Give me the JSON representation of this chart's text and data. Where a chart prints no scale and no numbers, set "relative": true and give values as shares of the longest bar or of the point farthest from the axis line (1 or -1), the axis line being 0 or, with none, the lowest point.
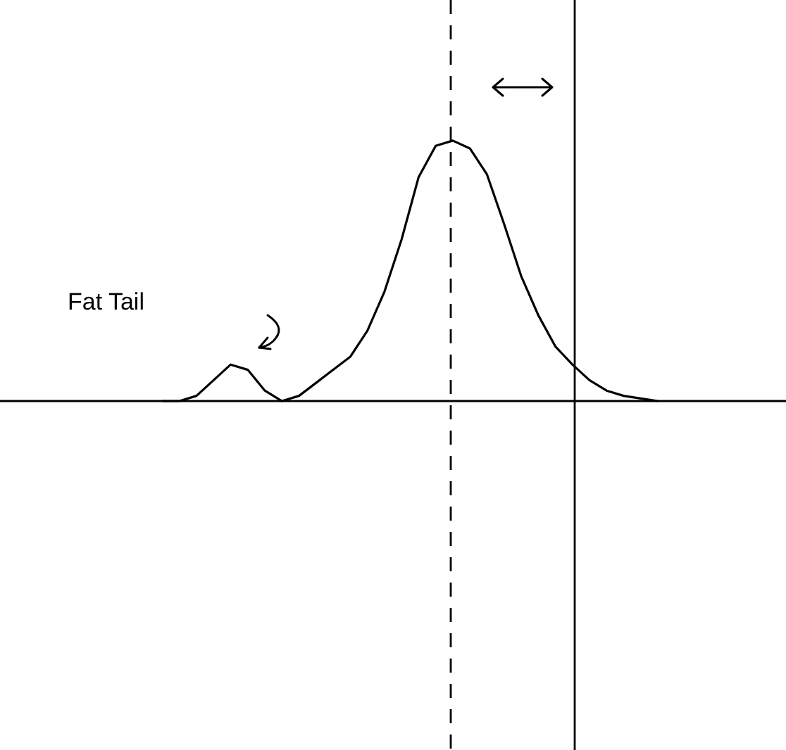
{
  "chart_data": {
    "type": "line",
    "relative": true,
    "categories": [
      null,
      null,
      null,
      null,
      null,
      null,
      null,
      null,
      null,
      null,
      null,
      null,
      null,
      null,
      null,
      null,
      null,
      null,
      null,
      null,
      null,
      null,
      null,
      null,
      null,
      null,
      null,
      null,
      null,
      null,
      null,
      null,
      null,
      null,
      null,
      null,
      null,
      null,
      null,
      null,
      null,
      null,
      null,
      null,
      null,
      null
    ],
    "series": [
      {
        "color": "#000000",
        "values": [
          null,
          null,
          null,
          null,
          null,
          null,
          null,
          null,
          null,
          0,
          0,
          0.02,
          0.08,
          0.14,
          0.12,
          0.04,
          0,
          0.02,
          0.07,
          0.12,
          0.17,
          0.27,
          0.42,
          0.62,
          0.86,
          0.98,
          1,
          0.97,
          0.87,
          0.68,
          0.48,
          0.33,
          0.21,
          0.14,
          0.08,
          0.04,
          0.02,
          0.01,
          0,
          null,
          null,
          null,
          null,
          null,
          null,
          null
        ]
      }
    ],
    "annotations": [
      "Fat Tail"
    ]
  }
}
